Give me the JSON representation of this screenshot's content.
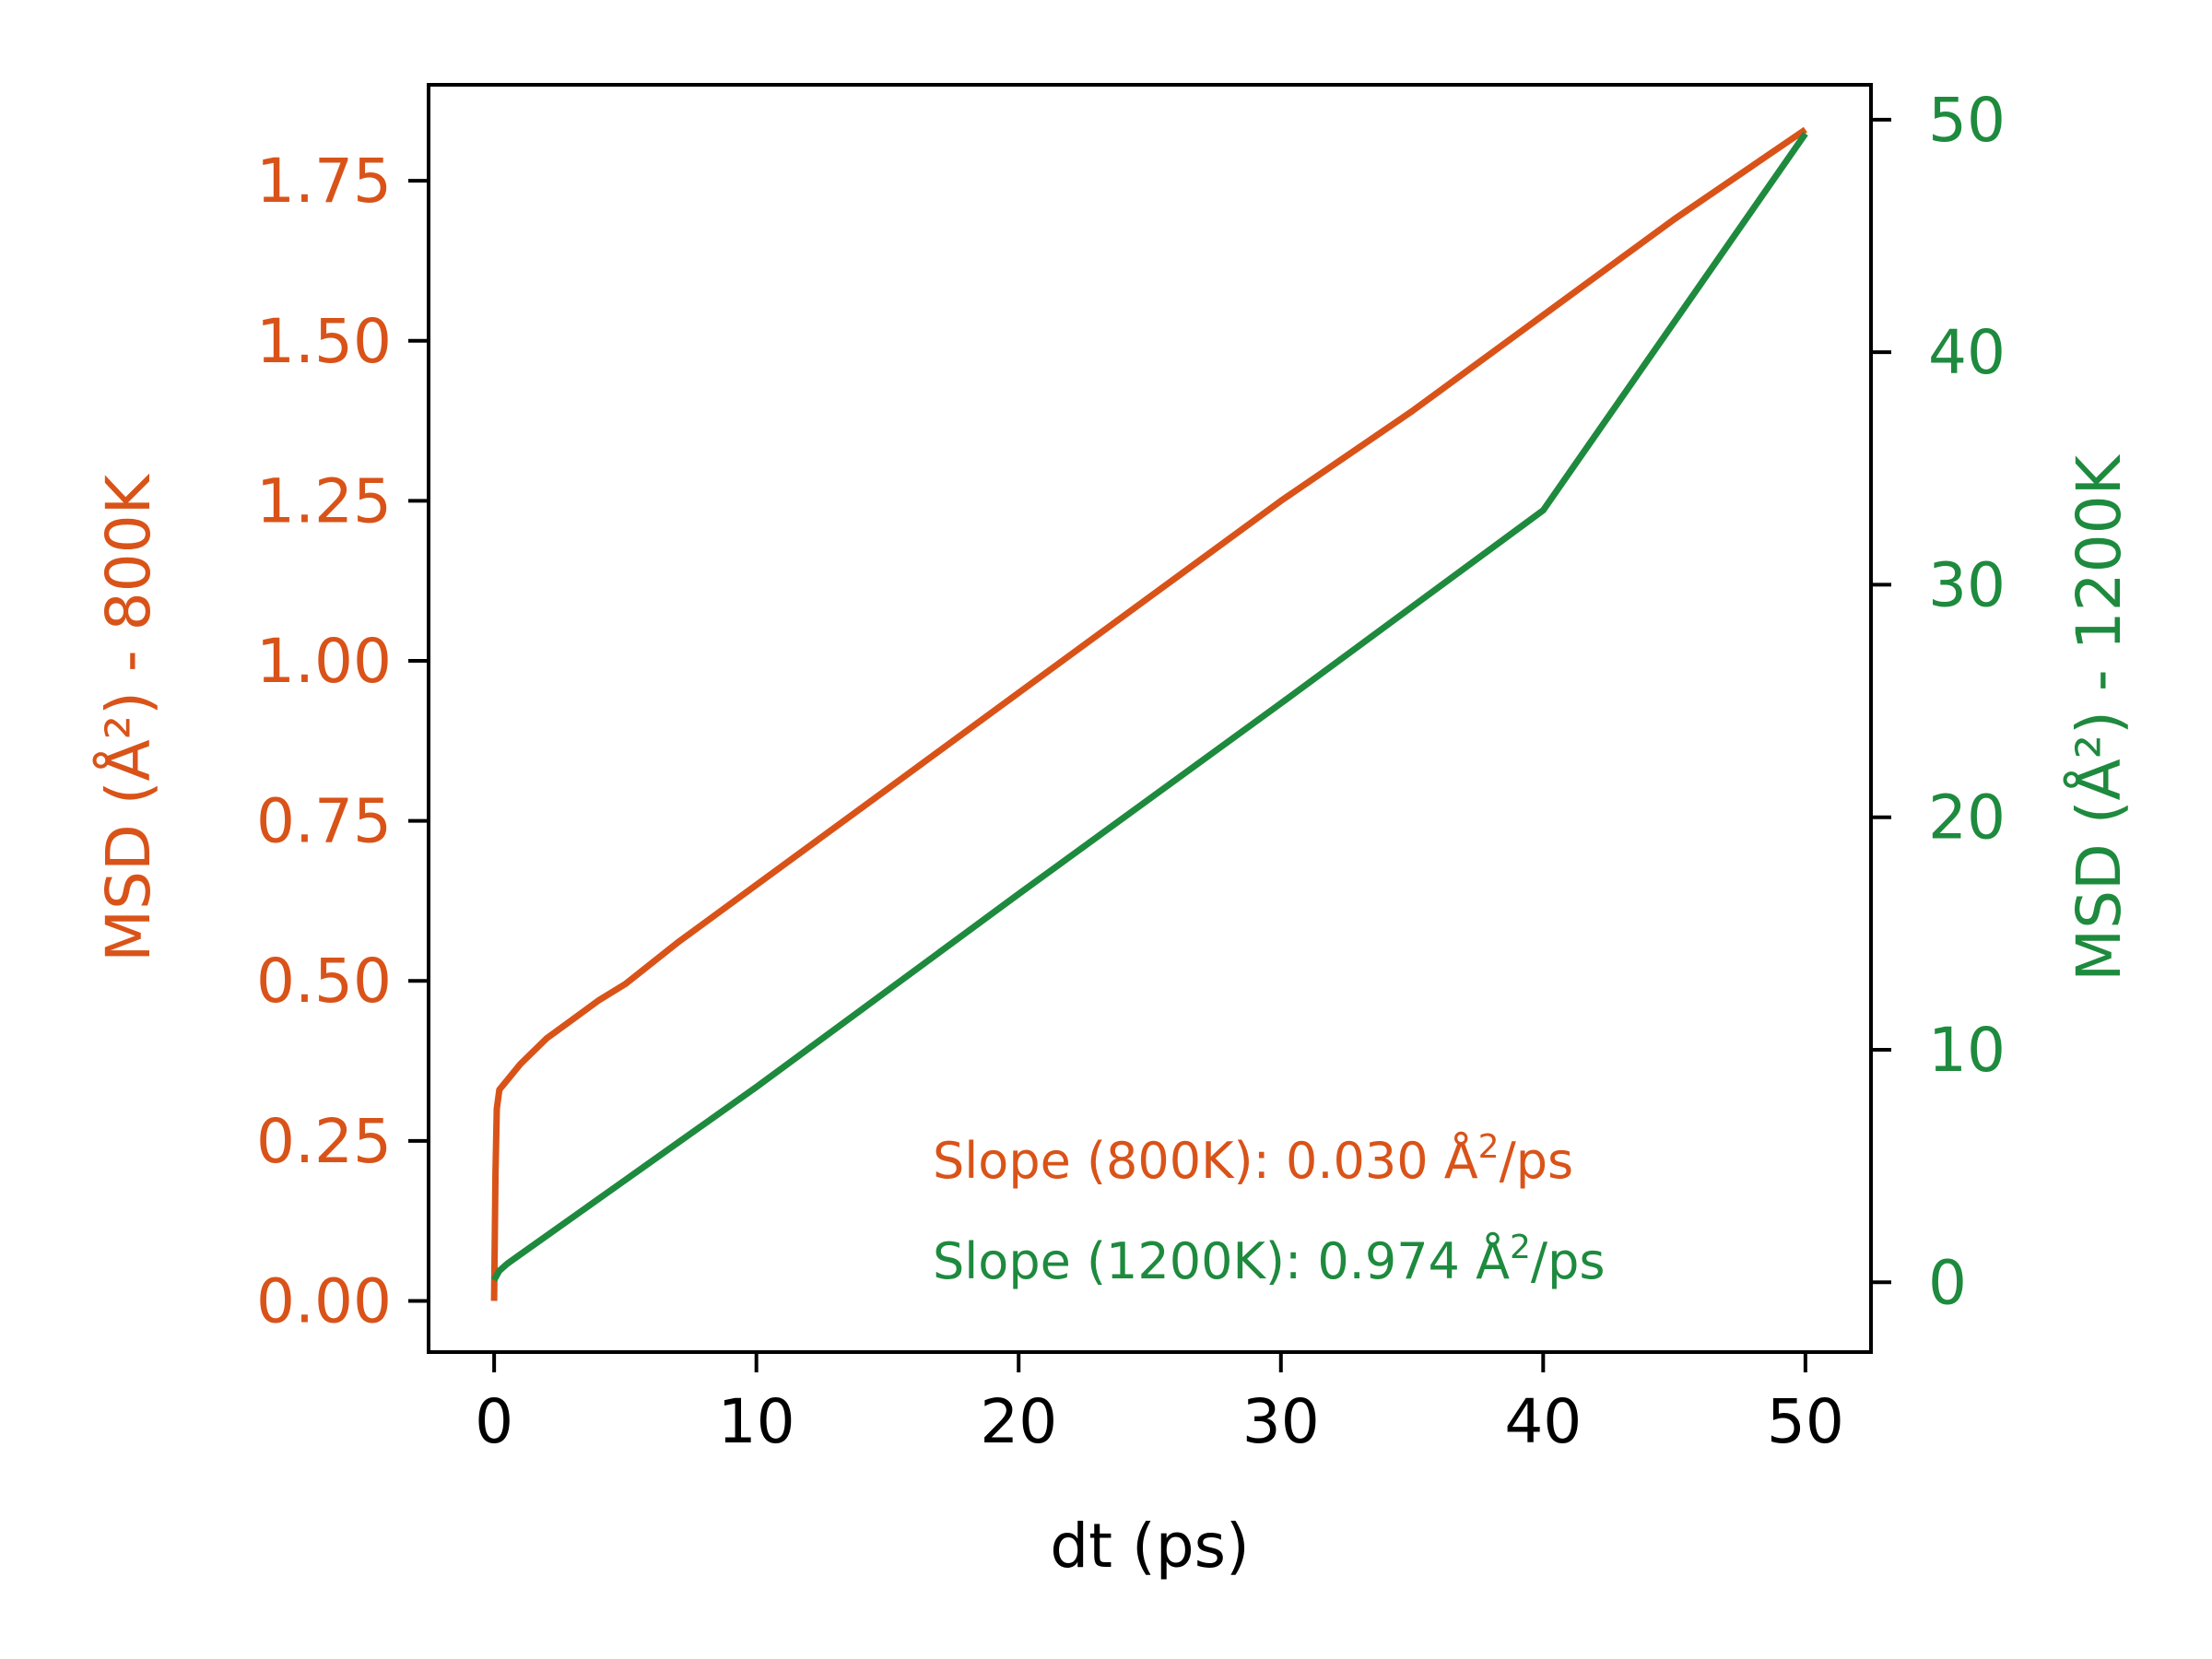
{
  "chart_data": {
    "type": "line",
    "title": "",
    "xlabel": "dt (ps)",
    "ylabel_left": "MSD (Å²) - 800K",
    "ylabel_right": "MSD (Å²) - 1200K",
    "xlim": [
      -2.5,
      52.5
    ],
    "ylim_left": [
      -0.08,
      1.9
    ],
    "ylim_right": [
      -3.0,
      51.5
    ],
    "xticks": [
      0,
      10,
      20,
      30,
      40,
      50
    ],
    "xtick_labels": [
      "0",
      "10",
      "20",
      "30",
      "40",
      "50"
    ],
    "yticks_left": [
      0,
      0.25,
      0.5,
      0.75,
      1.0,
      1.25,
      1.5,
      1.75
    ],
    "ytick_labels_left": [
      "0.00",
      "0.25",
      "0.50",
      "0.75",
      "1.00",
      "1.25",
      "1.50",
      "1.75"
    ],
    "yticks_right": [
      0,
      10,
      20,
      30,
      40,
      50
    ],
    "ytick_labels_right": [
      "0",
      "10",
      "20",
      "30",
      "40",
      "50"
    ],
    "grid": false,
    "colors": {
      "left": "#d95319",
      "right": "#1e8a3e",
      "axis": "#000000"
    },
    "series": [
      {
        "axis": "left",
        "color": "#d95319",
        "x": [
          0,
          0.05,
          0.1,
          0.2,
          0.5,
          1,
          2,
          3,
          4,
          5,
          7,
          10,
          15,
          20,
          25,
          30,
          35,
          40,
          45,
          50
        ],
        "y": [
          0.0,
          0.2,
          0.3,
          0.33,
          0.345,
          0.37,
          0.41,
          0.44,
          0.47,
          0.495,
          0.56,
          0.65,
          0.8,
          0.95,
          1.1,
          1.25,
          1.39,
          1.54,
          1.69,
          1.83
        ]
      },
      {
        "axis": "right",
        "color": "#1e8a3e",
        "x": [
          0,
          0.2,
          0.5,
          1,
          2,
          5,
          10,
          20,
          30,
          40,
          50
        ],
        "y": [
          0.1,
          0.5,
          0.8,
          1.2,
          2.0,
          4.4,
          8.4,
          16.7,
          24.9,
          33.2,
          49.4
        ]
      }
    ],
    "annotations": [
      {
        "text_prefix": "Slope (800K): 0.030 Å",
        "sup": "2",
        "text_suffix": "/ps",
        "color": "#d95319"
      },
      {
        "text_prefix": "Slope (1200K): 0.974 Å",
        "sup": "2",
        "text_suffix": "/ps",
        "color": "#1e8a3e"
      }
    ]
  }
}
